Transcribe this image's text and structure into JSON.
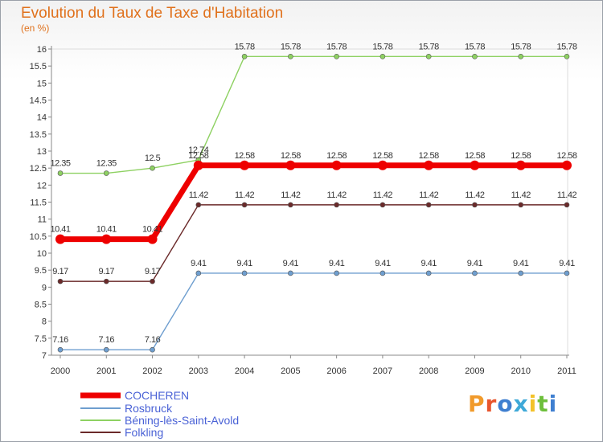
{
  "chart_data": {
    "type": "line",
    "title": "Evolution du Taux de Taxe d'Habitation",
    "ylabel": "(en %)",
    "xlabel": "",
    "ylim": [
      7,
      16
    ],
    "yticks": [
      "7",
      "7.5",
      "8",
      "8.5",
      "9",
      "9.5",
      "10",
      "10.5",
      "11",
      "11.5",
      "12",
      "12.5",
      "13",
      "13.5",
      "14",
      "14.5",
      "15",
      "15.5",
      "16"
    ],
    "categories": [
      "2000",
      "2001",
      "2002",
      "2003",
      "2004",
      "2005",
      "2006",
      "2007",
      "2008",
      "2009",
      "2010",
      "2011"
    ],
    "series": [
      {
        "name": "COCHEREN",
        "color": "#ee0000",
        "values": [
          10.41,
          10.41,
          10.41,
          12.58,
          12.58,
          12.58,
          12.58,
          12.58,
          12.58,
          12.58,
          12.58,
          12.58
        ],
        "labels": [
          "10.41",
          "10.41",
          "10.41",
          "12.58",
          "12.58",
          "12.58",
          "12.58",
          "12.58",
          "12.58",
          "12.58",
          "12.58",
          "12.58"
        ]
      },
      {
        "name": "Rosbruck",
        "color": "#6e9ecf",
        "values": [
          7.16,
          7.16,
          7.16,
          9.41,
          9.41,
          9.41,
          9.41,
          9.41,
          9.41,
          9.41,
          9.41,
          9.41
        ],
        "labels": [
          "7.16",
          "7.16",
          "7.16",
          "9.41",
          "9.41",
          "9.41",
          "9.41",
          "9.41",
          "9.41",
          "9.41",
          "9.41",
          "9.41"
        ]
      },
      {
        "name": "Béning-lès-Saint-Avold",
        "color": "#8ed162",
        "values": [
          12.35,
          12.35,
          12.5,
          12.74,
          15.78,
          15.78,
          15.78,
          15.78,
          15.78,
          15.78,
          15.78,
          15.78
        ],
        "labels": [
          "12.35",
          "12.35",
          "12.5",
          "12.74",
          "15.78",
          "15.78",
          "15.78",
          "15.78",
          "15.78",
          "15.78",
          "15.78",
          "15.78"
        ]
      },
      {
        "name": "Folkling",
        "color": "#6b2a2a",
        "values": [
          9.17,
          9.17,
          9.17,
          11.42,
          11.42,
          11.42,
          11.42,
          11.42,
          11.42,
          11.42,
          11.42,
          11.42
        ],
        "labels": [
          "9.17",
          "9.17",
          "9.17",
          "11.42",
          "11.42",
          "11.42",
          "11.42",
          "11.42",
          "11.42",
          "11.42",
          "11.42",
          "11.42"
        ]
      }
    ]
  },
  "brand": {
    "logo_text": "Proxiti"
  }
}
